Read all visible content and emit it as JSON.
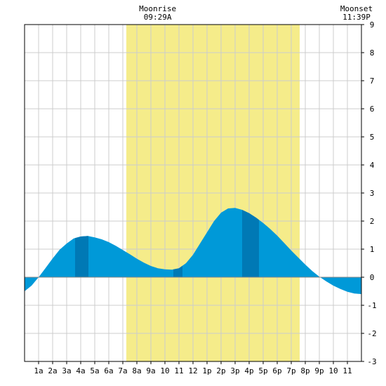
{
  "chart_data": {
    "type": "area",
    "x_tick_labels": [
      "1a",
      "2a",
      "3a",
      "4a",
      "5a",
      "6a",
      "7a",
      "8a",
      "9a",
      "10",
      "11",
      "12",
      "1p",
      "2p",
      "3p",
      "4p",
      "5p",
      "6p",
      "7p",
      "8p",
      "9p",
      "10",
      "11"
    ],
    "ylim": [
      -3,
      9
    ],
    "y_ticks": [
      -3,
      -2,
      -1,
      0,
      1,
      2,
      3,
      4,
      5,
      6,
      7,
      8,
      9
    ],
    "xlim_hours": [
      0,
      24
    ],
    "grid": true,
    "daylight_hours": [
      7.25,
      19.6
    ],
    "series": [
      {
        "x": [
          0,
          0.5,
          1,
          1.5,
          2,
          2.5,
          3,
          3.5,
          4,
          4.5,
          5,
          5.5,
          6,
          6.5,
          7,
          7.5,
          8,
          8.5,
          9,
          9.5,
          10,
          10.5,
          11,
          11.5,
          12,
          12.5,
          13,
          13.5,
          14,
          14.5,
          15,
          15.5,
          16,
          16.5,
          17,
          17.5,
          18,
          18.5,
          19,
          19.5,
          20,
          20.5,
          21,
          21.5,
          22,
          22.5,
          23,
          23.5,
          24
        ],
        "values": [
          -0.5,
          -0.3,
          0,
          0.33,
          0.67,
          0.98,
          1.2,
          1.38,
          1.45,
          1.47,
          1.42,
          1.35,
          1.25,
          1.12,
          0.97,
          0.82,
          0.66,
          0.52,
          0.4,
          0.32,
          0.28,
          0.27,
          0.32,
          0.5,
          0.8,
          1.2,
          1.6,
          2.0,
          2.3,
          2.45,
          2.47,
          2.4,
          2.28,
          2.12,
          1.93,
          1.72,
          1.48,
          1.22,
          0.95,
          0.7,
          0.45,
          0.22,
          0.02,
          -0.15,
          -0.3,
          -0.42,
          -0.52,
          -0.58,
          -0.6
        ]
      }
    ],
    "dark_bands_hours": [
      [
        3.6,
        4.55
      ],
      [
        10.6,
        11.25
      ],
      [
        15.5,
        16.7
      ]
    ],
    "annotations": [
      {
        "label": "Moonrise",
        "time": "09:29A",
        "hour": 9.48
      },
      {
        "label": "Moonset",
        "time": "11:39P",
        "hour": 23.65
      }
    ],
    "colors": {
      "area": "#0099d8",
      "area_dark": "#0079b5",
      "daylight": "#f5ec8a",
      "grid": "#cccccc",
      "zero_line": "#888888",
      "frame": "#000000"
    }
  }
}
